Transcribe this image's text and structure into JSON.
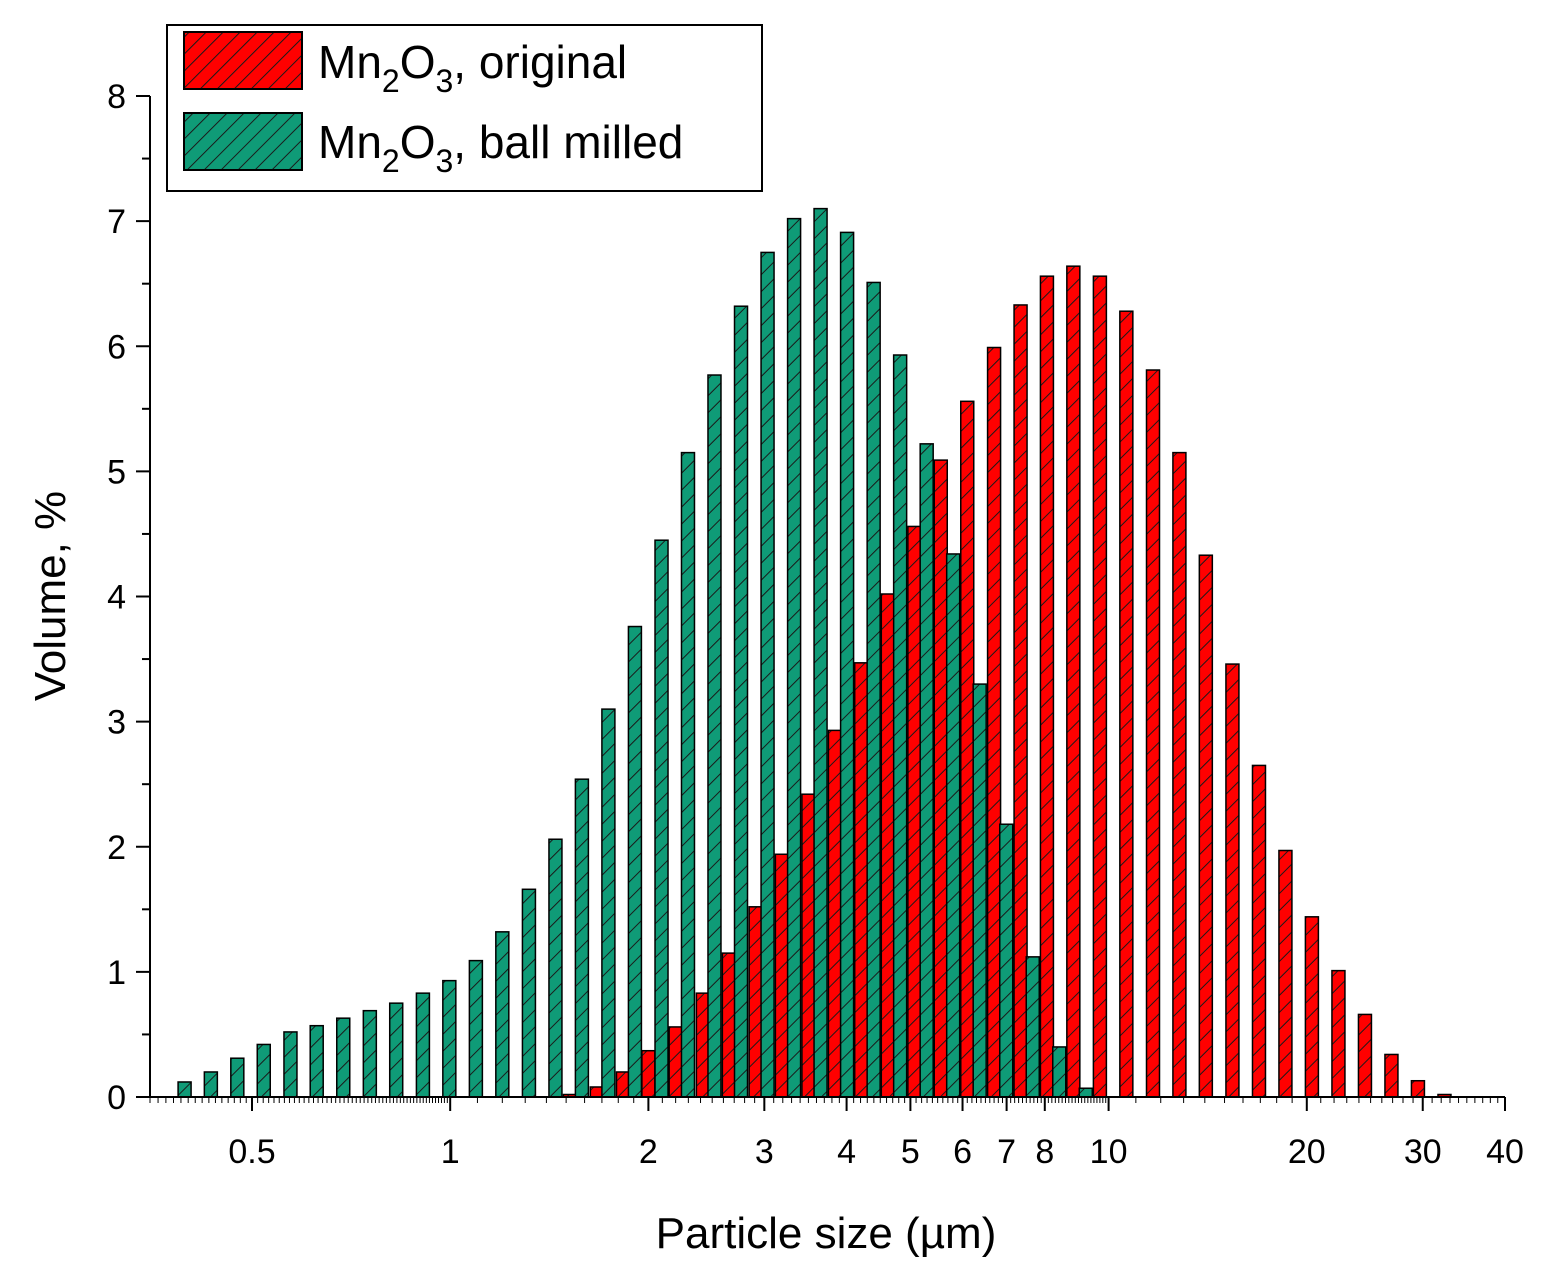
{
  "chart_data": {
    "type": "bar",
    "xscale": "log",
    "xlabel": "Particle size (µm)",
    "ylabel": "Volume, %",
    "xlim": [
      0.35,
      40
    ],
    "ylim": [
      0,
      8
    ],
    "x_ticks": [
      {
        "value": 0.5,
        "label": "0.5"
      },
      {
        "value": 1,
        "label": "1"
      },
      {
        "value": 2,
        "label": "2"
      },
      {
        "value": 3,
        "label": "3"
      },
      {
        "value": 4,
        "label": "4"
      },
      {
        "value": 5,
        "label": "5"
      },
      {
        "value": 6,
        "label": "6"
      },
      {
        "value": 7,
        "label": "7"
      },
      {
        "value": 8,
        "label": "8"
      },
      {
        "value": 10,
        "label": "10"
      },
      {
        "value": 20,
        "label": "20"
      },
      {
        "value": 30,
        "label": "30"
      },
      {
        "value": 40,
        "label": "40"
      }
    ],
    "y_ticks": [
      {
        "value": 0,
        "label": "0"
      },
      {
        "value": 1,
        "label": "1"
      },
      {
        "value": 2,
        "label": "2"
      },
      {
        "value": 3,
        "label": "3"
      },
      {
        "value": 4,
        "label": "4"
      },
      {
        "value": 5,
        "label": "5"
      },
      {
        "value": 6,
        "label": "6"
      },
      {
        "value": 7,
        "label": "7"
      },
      {
        "value": 8,
        "label": "8"
      }
    ],
    "legend": {
      "placement": "top-left",
      "entries": [
        {
          "series": "original",
          "base": "Mn",
          "sub1": "2",
          "mid": "O",
          "sub2": "3",
          "rest": ", original"
        },
        {
          "series": "ball_milled",
          "base": "Mn",
          "sub1": "2",
          "mid": "O",
          "sub2": "3",
          "rest": ", ball milled"
        }
      ]
    },
    "series": [
      {
        "name": "Mn2O3, original",
        "color": "#ff0000",
        "x": [
          1.52,
          1.67,
          1.83,
          2.0,
          2.2,
          2.42,
          2.65,
          2.91,
          3.19,
          3.5,
          3.84,
          4.21,
          4.62,
          5.07,
          5.56,
          6.1,
          6.7,
          7.35,
          8.06,
          8.84,
          9.7,
          10.64,
          11.68,
          12.81,
          14.05,
          15.42,
          16.92,
          18.56,
          20.36,
          22.34,
          24.51,
          26.89,
          29.5,
          32.37,
          35.51
        ],
        "values": [
          0.02,
          0.08,
          0.2,
          0.37,
          0.56,
          0.83,
          1.15,
          1.52,
          1.94,
          2.42,
          2.93,
          3.47,
          4.02,
          4.56,
          5.09,
          5.56,
          5.99,
          6.33,
          6.56,
          6.64,
          6.56,
          6.28,
          5.81,
          5.15,
          4.33,
          3.46,
          2.65,
          1.97,
          1.44,
          1.01,
          0.66,
          0.34,
          0.13,
          0.02,
          0.0
        ]
      },
      {
        "name": "Mn2O3, ball milled",
        "color": "#0f9b77",
        "x": [
          0.395,
          0.433,
          0.475,
          0.521,
          0.572,
          0.627,
          0.688,
          0.755,
          0.828,
          0.909,
          0.997,
          1.094,
          1.2,
          1.317,
          1.445,
          1.585,
          1.739,
          1.908,
          2.094,
          2.297,
          2.52,
          2.765,
          3.034,
          3.329,
          3.652,
          4.007,
          4.397,
          4.824,
          5.293,
          5.807,
          6.371,
          6.991,
          7.67,
          8.415,
          9.233
        ],
        "values": [
          0.12,
          0.2,
          0.31,
          0.42,
          0.52,
          0.57,
          0.63,
          0.69,
          0.75,
          0.83,
          0.93,
          1.09,
          1.32,
          1.66,
          2.06,
          2.54,
          3.1,
          3.76,
          4.45,
          5.15,
          5.77,
          6.32,
          6.75,
          7.02,
          7.1,
          6.91,
          6.51,
          5.93,
          5.22,
          4.34,
          3.3,
          2.18,
          1.12,
          0.4,
          0.07
        ]
      }
    ]
  }
}
